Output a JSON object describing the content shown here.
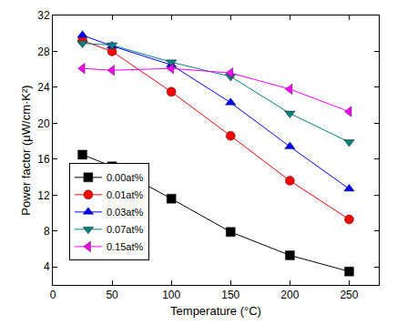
{
  "chart_data": {
    "type": "line",
    "x_label": "Temperature (°C)",
    "y_label": "Power factor (μW/cm·K²)",
    "x": [
      25,
      50,
      100,
      150,
      200,
      250
    ],
    "series": [
      {
        "name": "0.00at%",
        "color": "#000000",
        "marker": "square",
        "line_style": "solid",
        "values": [
          16.5,
          15.2,
          11.6,
          7.9,
          5.3,
          3.5
        ]
      },
      {
        "name": "0.01at%",
        "color": "#ff0000",
        "marker": "circle",
        "line_style": "solid",
        "values": [
          29.2,
          28.0,
          23.5,
          18.6,
          13.6,
          9.3
        ]
      },
      {
        "name": "0.03at%",
        "color": "#0000ff",
        "marker": "triangle-up",
        "line_style": "solid",
        "values": [
          29.8,
          28.6,
          26.5,
          22.3,
          17.4,
          12.7
        ]
      },
      {
        "name": "0.07at%",
        "color": "#008080",
        "marker": "triangle-down",
        "line_style": "solid",
        "values": [
          28.9,
          28.7,
          26.8,
          25.2,
          21.1,
          17.9
        ]
      },
      {
        "name": "0.15at%",
        "color": "#ff00ff",
        "marker": "triangle-left",
        "line_style": "solid",
        "values": [
          26.1,
          25.9,
          26.1,
          25.6,
          23.8,
          21.3
        ]
      }
    ],
    "xlim": [
      0,
      275
    ],
    "xticks": [
      0,
      50,
      100,
      150,
      200,
      250
    ],
    "ylim": [
      2,
      32
    ],
    "yticks": [
      4,
      8,
      12,
      16,
      20,
      24,
      28,
      32
    ],
    "grid": false,
    "legend": "lower left"
  }
}
